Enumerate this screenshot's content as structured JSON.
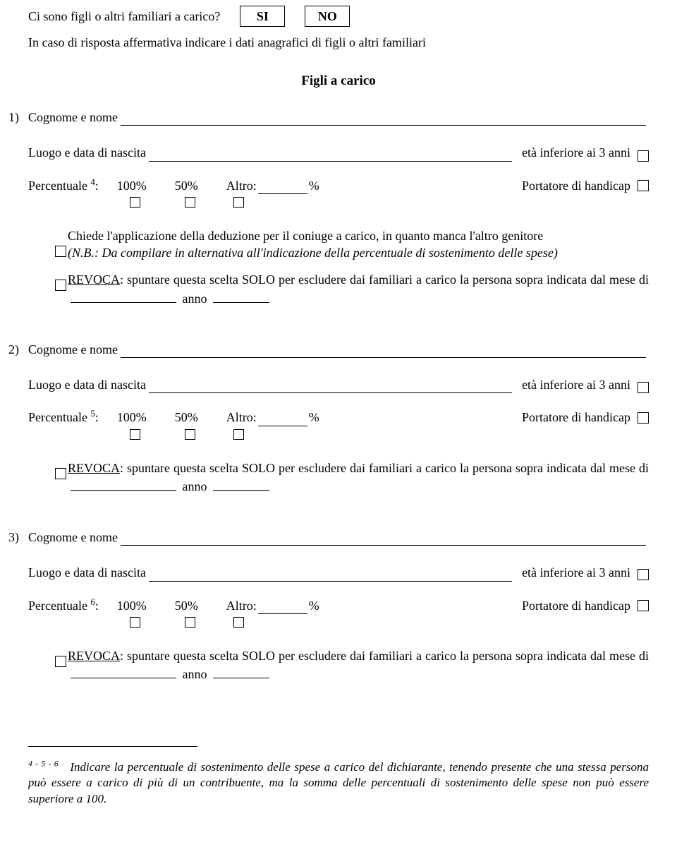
{
  "top": {
    "question": "Ci sono figli o altri familiari a carico?",
    "yes": "SI",
    "no": "NO",
    "sub": "In caso di risposta affermativa indicare i dati anagrafici di figli o altri familiari"
  },
  "section_title": "Figli a carico",
  "labels": {
    "cognome": "Cognome e nome",
    "luogo": "Luogo e data di nascita",
    "eta_inf": "età inferiore ai 3 anni",
    "percentuale": "Percentuale",
    "p100": "100%",
    "p50": "50%",
    "altro": "Altro:",
    "pct_sign": "%",
    "portatore": "Portatore di handicap",
    "revoca_word": "REVOCA",
    "revoca_rest": ": spuntare questa scelta SOLO per escludere dai familiari a carico la persona sopra indicata dal mese di",
    "anno": "anno"
  },
  "items": [
    {
      "num": "1)",
      "sup": "4",
      "show_chiede": true,
      "stack_right": false
    },
    {
      "num": "2)",
      "sup": "5",
      "show_chiede": false,
      "stack_right": false
    },
    {
      "num": "3)",
      "sup": "6",
      "show_chiede": false,
      "stack_right": true
    }
  ],
  "chiede": {
    "line1": "Chiede l'applicazione della deduzione per il coniuge a carico, in quanto manca l'altro genitore",
    "nb": "(N.B.: Da compilare in alternativa all'indicazione della percentuale di sostenimento delle spese)"
  },
  "footnote": {
    "sup": "4 - 5 - 6",
    "text": "Indicare la percentuale di sostenimento delle spese a carico del dichiarante, tenendo presente che una stessa persona può essere a carico di più di un contribuente, ma la somma delle percentuali di sostenimento delle spese non può essere superiore a 100."
  }
}
